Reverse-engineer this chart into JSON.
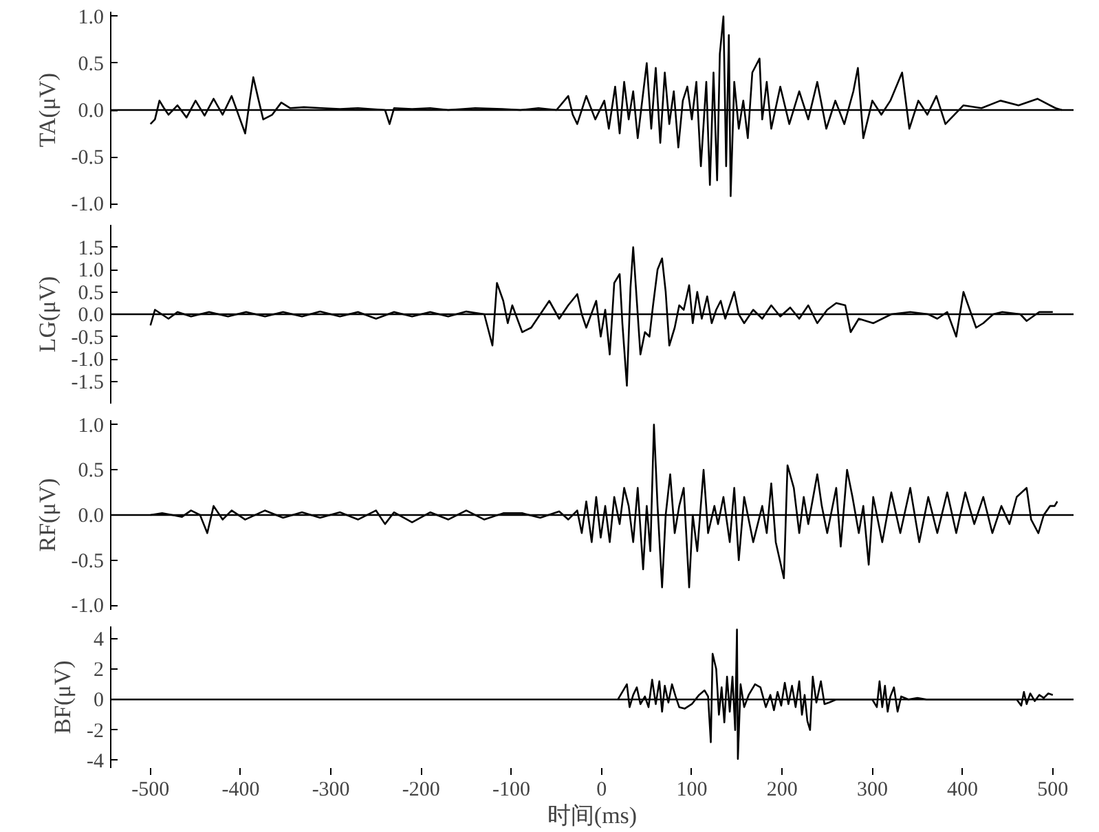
{
  "chart_data": [
    {
      "type": "line",
      "ylabel": "TA(μV)",
      "xlim": [
        -544,
        523
      ],
      "ylim": [
        -1.05,
        1.05
      ],
      "yticks": [
        {
          "value": 1.0,
          "label": "1.0"
        },
        {
          "value": 0.5,
          "label": "0.5"
        },
        {
          "value": 0,
          "label": "0.0"
        },
        {
          "value": -0.5,
          "label": "-0.5"
        },
        {
          "value": -1.0,
          "label": "-1.0"
        }
      ],
      "tick_labels": "y",
      "grid": false,
      "ref_lines": [
        {
          "axis": "y",
          "value": 0,
          "color": "#000000"
        }
      ],
      "series": [
        {
          "color": "#000000",
          "x": [
            -500,
            -495,
            -490,
            -485,
            -480,
            -470,
            -460,
            -450,
            -440,
            -430,
            -420,
            -410,
            -395,
            -390,
            -386,
            -380,
            -375,
            -365,
            -355,
            -345,
            -330,
            -310,
            -290,
            -270,
            -240,
            -235,
            -230,
            -210,
            -190,
            -170,
            -140,
            -110,
            -90,
            -70,
            -50,
            -37,
            -32,
            -27,
            -17,
            -7,
            3,
            8,
            15,
            20,
            25,
            30,
            35,
            40,
            45,
            50,
            55,
            60,
            65,
            70,
            75,
            80,
            85,
            90,
            95,
            100,
            105,
            110,
            116,
            120,
            124,
            128,
            131,
            135,
            138,
            141,
            143,
            147,
            152,
            157,
            162,
            167,
            175,
            178,
            183,
            188,
            198,
            208,
            219,
            229,
            239,
            249,
            259,
            269,
            279,
            284,
            290,
            300,
            310,
            320,
            333,
            341,
            351,
            361,
            371,
            381,
            401,
            421,
            442,
            462,
            483,
            503,
            510
          ],
          "values": [
            -0.15,
            -0.1,
            0.1,
            0.02,
            -0.05,
            0.05,
            -0.08,
            0.1,
            -0.06,
            0.12,
            -0.05,
            0.15,
            -0.25,
            0.1,
            0.35,
            0.1,
            -0.1,
            -0.05,
            0.08,
            0.02,
            0.03,
            0.02,
            0.01,
            0.02,
            0.0,
            -0.15,
            0.02,
            0.01,
            0.02,
            0.0,
            0.02,
            0.01,
            0.0,
            0.02,
            0.0,
            0.15,
            -0.05,
            -0.15,
            0.15,
            -0.1,
            0.1,
            -0.2,
            0.25,
            -0.25,
            0.3,
            -0.1,
            0.2,
            -0.3,
            0.1,
            0.5,
            -0.2,
            0.45,
            -0.35,
            0.4,
            -0.15,
            0.2,
            -0.4,
            0.1,
            0.25,
            -0.1,
            0.3,
            -0.6,
            0.3,
            -0.8,
            0.4,
            -0.75,
            0.6,
            1.0,
            -0.6,
            0.8,
            -0.92,
            0.3,
            -0.2,
            0.1,
            -0.3,
            0.4,
            0.55,
            -0.1,
            0.3,
            -0.2,
            0.25,
            -0.15,
            0.2,
            -0.1,
            0.3,
            -0.2,
            0.1,
            -0.15,
            0.2,
            0.45,
            -0.3,
            0.1,
            -0.05,
            0.1,
            0.4,
            -0.2,
            0.1,
            -0.05,
            0.15,
            -0.15,
            0.05,
            0.02,
            0.1,
            0.05,
            0.12,
            0.02,
            0.0
          ]
        }
      ]
    },
    {
      "type": "line",
      "ylabel": "LG(μV)",
      "xlim": [
        -544,
        523
      ],
      "ylim": [
        -2.0,
        2.0
      ],
      "yticks": [
        {
          "value": 1.5,
          "label": "1.5"
        },
        {
          "value": 1.0,
          "label": "1.0"
        },
        {
          "value": 0.5,
          "label": "0.5"
        },
        {
          "value": 0,
          "label": "0.0"
        },
        {
          "value": -0.5,
          "label": "-0.5"
        },
        {
          "value": -1.0,
          "label": "-1.0"
        },
        {
          "value": -1.5,
          "label": "-1.5"
        }
      ],
      "tick_labels": "y",
      "grid": false,
      "ref_lines": [
        {
          "axis": "y",
          "value": 0,
          "color": "#000000"
        }
      ],
      "series": [
        {
          "color": "#000000",
          "x": [
            -500,
            -495,
            -480,
            -470,
            -455,
            -435,
            -414,
            -394,
            -373,
            -353,
            -332,
            -312,
            -290,
            -270,
            -250,
            -230,
            -210,
            -190,
            -170,
            -150,
            -130,
            -121,
            -116,
            -109,
            -104,
            -99,
            -88,
            -78,
            -68,
            -58,
            -47,
            -37,
            -27,
            -22,
            -17,
            -6,
            -1,
            4,
            9,
            14,
            20,
            23,
            28,
            32,
            35,
            39,
            43,
            48,
            53,
            57,
            62,
            67,
            71,
            75,
            81,
            86,
            91,
            97,
            101,
            106,
            111,
            117,
            122,
            127,
            132,
            137,
            147,
            152,
            158,
            168,
            178,
            188,
            198,
            209,
            219,
            229,
            239,
            250,
            260,
            270,
            276,
            285,
            301,
            321,
            342,
            362,
            372,
            383,
            393,
            401,
            408,
            415,
            423,
            434,
            444,
            464,
            471,
            485,
            495,
            500
          ],
          "values": [
            -0.25,
            0.1,
            -0.1,
            0.05,
            -0.05,
            0.05,
            -0.05,
            0.05,
            -0.05,
            0.05,
            -0.05,
            0.06,
            -0.05,
            0.05,
            -0.1,
            0.05,
            -0.05,
            0.05,
            -0.05,
            0.06,
            0.0,
            -0.7,
            0.7,
            0.3,
            -0.2,
            0.2,
            -0.4,
            -0.3,
            0.0,
            0.3,
            -0.1,
            0.2,
            0.45,
            0.0,
            -0.3,
            0.3,
            -0.5,
            0.1,
            -0.9,
            0.7,
            0.9,
            -0.2,
            -1.6,
            0.6,
            1.5,
            0.3,
            -0.9,
            -0.4,
            -0.5,
            0.2,
            1.0,
            1.25,
            0.5,
            -0.7,
            -0.3,
            0.2,
            0.1,
            0.65,
            -0.2,
            0.5,
            -0.1,
            0.4,
            -0.2,
            0.1,
            0.3,
            -0.1,
            0.5,
            0.0,
            -0.2,
            0.1,
            -0.1,
            0.2,
            -0.05,
            0.15,
            -0.1,
            0.2,
            -0.2,
            0.1,
            0.25,
            0.2,
            -0.4,
            -0.1,
            -0.2,
            0.0,
            0.05,
            0.0,
            -0.1,
            0.05,
            -0.5,
            0.5,
            0.1,
            -0.3,
            -0.2,
            0.0,
            0.05,
            0.0,
            -0.15,
            0.05,
            0.05,
            0.05
          ]
        }
      ]
    },
    {
      "type": "line",
      "ylabel": "RF(μV)",
      "xlim": [
        -544,
        523
      ],
      "ylim": [
        -1.05,
        1.05
      ],
      "yticks": [
        {
          "value": 1.0,
          "label": "1.0"
        },
        {
          "value": 0.5,
          "label": "0.5"
        },
        {
          "value": 0,
          "label": "0.0"
        },
        {
          "value": -0.5,
          "label": "-0.5"
        },
        {
          "value": -1.0,
          "label": "-1.0"
        }
      ],
      "tick_labels": "y",
      "grid": false,
      "ref_lines": [
        {
          "axis": "y",
          "value": 0,
          "color": "#000000"
        }
      ],
      "series": [
        {
          "color": "#000000",
          "x": [
            -500,
            -487,
            -465,
            -455,
            -445,
            -437,
            -430,
            -420,
            -410,
            -395,
            -373,
            -353,
            -332,
            -312,
            -290,
            -270,
            -250,
            -240,
            -230,
            -210,
            -190,
            -170,
            -150,
            -130,
            -109,
            -88,
            -68,
            -47,
            -37,
            -27,
            -22,
            -17,
            -11,
            -6,
            -1,
            4,
            9,
            14,
            20,
            25,
            30,
            35,
            40,
            46,
            50,
            54,
            58,
            62,
            67,
            71,
            76,
            81,
            86,
            91,
            97,
            101,
            106,
            113,
            118,
            125,
            129,
            135,
            142,
            147,
            152,
            158,
            168,
            178,
            183,
            188,
            193,
            202,
            206,
            213,
            219,
            224,
            229,
            239,
            244,
            250,
            260,
            265,
            272,
            278,
            285,
            290,
            296,
            301,
            311,
            321,
            331,
            342,
            352,
            362,
            372,
            383,
            393,
            403,
            413,
            423,
            433,
            443,
            452,
            460,
            471,
            476,
            484,
            490,
            497,
            502,
            505
          ],
          "values": [
            0.0,
            0.02,
            -0.02,
            0.05,
            0.0,
            -0.2,
            0.1,
            -0.05,
            0.05,
            -0.05,
            0.05,
            -0.03,
            0.03,
            -0.03,
            0.03,
            -0.05,
            0.05,
            -0.1,
            0.03,
            -0.08,
            0.03,
            -0.05,
            0.05,
            -0.05,
            0.02,
            0.02,
            -0.03,
            0.04,
            -0.05,
            0.05,
            -0.2,
            0.15,
            -0.3,
            0.2,
            -0.25,
            0.1,
            -0.3,
            0.2,
            -0.1,
            0.3,
            0.1,
            -0.3,
            0.3,
            -0.6,
            0.1,
            -0.4,
            1.0,
            0.1,
            -0.8,
            0.0,
            0.45,
            -0.2,
            0.1,
            0.3,
            -0.8,
            0.0,
            -0.4,
            0.5,
            -0.2,
            0.1,
            -0.1,
            0.2,
            -0.3,
            0.3,
            -0.5,
            0.2,
            -0.3,
            0.1,
            -0.2,
            0.35,
            -0.3,
            -0.7,
            0.55,
            0.3,
            -0.2,
            0.2,
            -0.1,
            0.45,
            0.1,
            -0.2,
            0.3,
            -0.35,
            0.5,
            0.2,
            -0.2,
            0.1,
            -0.55,
            0.2,
            -0.3,
            0.25,
            -0.2,
            0.3,
            -0.3,
            0.2,
            -0.2,
            0.25,
            -0.2,
            0.25,
            -0.1,
            0.2,
            -0.2,
            0.1,
            -0.1,
            0.2,
            0.3,
            -0.05,
            -0.2,
            0.0,
            0.1,
            0.1,
            0.15
          ]
        }
      ]
    },
    {
      "type": "line",
      "ylabel": "BF(μV)",
      "xlabel": "时间(ms)",
      "xlim": [
        -544,
        523
      ],
      "xticks": [
        -500,
        -400,
        -300,
        -200,
        -100,
        0,
        100,
        200,
        300,
        400,
        500
      ],
      "ylim": [
        -4.5,
        4.8
      ],
      "yticks": [
        4,
        2,
        0,
        -2,
        -4
      ],
      "grid": false,
      "ref_lines": [
        {
          "axis": "y",
          "value": 0,
          "color": "#000000"
        }
      ],
      "series": [
        {
          "color": "#000000",
          "x": [
            18,
            28,
            31,
            35,
            39,
            43,
            48,
            52,
            56,
            60,
            64,
            67,
            70,
            74,
            78,
            82,
            86,
            92,
            100,
            108,
            114,
            118,
            121,
            123,
            127,
            130,
            133,
            136,
            139,
            142,
            145,
            148,
            150,
            151,
            154,
            158,
            163,
            170,
            176,
            182,
            187,
            191,
            195,
            199,
            203,
            207,
            211,
            215,
            219,
            222,
            225,
            228,
            231,
            234,
            238,
            243,
            247,
            252,
            260,
            300,
            305,
            308,
            311,
            314,
            317,
            320,
            324,
            328,
            332,
            340,
            350,
            360,
            460,
            465,
            468,
            471,
            475,
            480,
            485,
            490,
            495,
            500
          ],
          "values": [
            0,
            1.0,
            -0.5,
            0.3,
            0.8,
            -0.3,
            0.2,
            -0.5,
            1.3,
            -0.3,
            1.2,
            -0.8,
            0.9,
            -0.2,
            1.0,
            0.2,
            -0.5,
            -0.6,
            -0.3,
            0.3,
            0.6,
            0.2,
            -2.8,
            3.0,
            2.0,
            -1.0,
            0.8,
            -1.5,
            1.5,
            -0.8,
            1.5,
            -2.0,
            4.6,
            -3.9,
            1.0,
            -0.5,
            0.3,
            1.0,
            0.8,
            -0.5,
            0.3,
            -0.7,
            0.5,
            -0.4,
            1.1,
            -0.3,
            0.9,
            -0.5,
            1.2,
            -1.0,
            0.3,
            -1.4,
            -2.0,
            1.5,
            -0.2,
            1.2,
            -0.3,
            -0.2,
            0,
            0,
            -0.5,
            1.2,
            -0.5,
            0.9,
            -0.8,
            0.2,
            0.8,
            -0.8,
            0.2,
            0,
            0.1,
            0,
            0,
            -0.4,
            0.5,
            -0.3,
            0.4,
            -0.1,
            0.3,
            0.1,
            0.4,
            0.3
          ]
        }
      ]
    }
  ]
}
